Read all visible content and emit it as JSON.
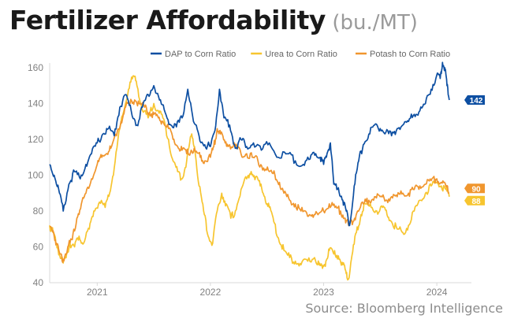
{
  "chart_data": {
    "type": "line",
    "title": "Fertilizer Affordability",
    "unit": "(bu./MT)",
    "source": "Source: Bloomberg Intelligence",
    "x_range": [
      2020.58,
      2024.25
    ],
    "ylim": [
      40,
      160
    ],
    "yticks": [
      40,
      60,
      80,
      100,
      120,
      140,
      160
    ],
    "xticks": [
      {
        "x": 2021.0,
        "label": "2021"
      },
      {
        "x": 2022.0,
        "label": "2022"
      },
      {
        "x": 2023.0,
        "label": "2023"
      },
      {
        "x": 2024.0,
        "label": "2024"
      }
    ],
    "legend_position": "top-right",
    "series": [
      {
        "name": "DAP to Corn Ratio",
        "color": "#0d4fa2",
        "end_label": "142",
        "points": [
          [
            2020.58,
            106
          ],
          [
            2020.62,
            100
          ],
          [
            2020.66,
            92
          ],
          [
            2020.7,
            80
          ],
          [
            2020.75,
            95
          ],
          [
            2020.8,
            102
          ],
          [
            2020.85,
            98
          ],
          [
            2020.9,
            106
          ],
          [
            2020.95,
            112
          ],
          [
            2021.0,
            118
          ],
          [
            2021.05,
            123
          ],
          [
            2021.1,
            126
          ],
          [
            2021.15,
            122
          ],
          [
            2021.2,
            138
          ],
          [
            2021.25,
            145
          ],
          [
            2021.3,
            136
          ],
          [
            2021.35,
            128
          ],
          [
            2021.4,
            138
          ],
          [
            2021.45,
            145
          ],
          [
            2021.5,
            150
          ],
          [
            2021.55,
            142
          ],
          [
            2021.6,
            135
          ],
          [
            2021.65,
            128
          ],
          [
            2021.7,
            127
          ],
          [
            2021.75,
            132
          ],
          [
            2021.8,
            148
          ],
          [
            2021.85,
            130
          ],
          [
            2021.9,
            122
          ],
          [
            2021.95,
            117
          ],
          [
            2022.0,
            116
          ],
          [
            2022.04,
            125
          ],
          [
            2022.08,
            148
          ],
          [
            2022.12,
            132
          ],
          [
            2022.17,
            128
          ],
          [
            2022.22,
            115
          ],
          [
            2022.27,
            120
          ],
          [
            2022.32,
            116
          ],
          [
            2022.38,
            118
          ],
          [
            2022.45,
            114
          ],
          [
            2022.52,
            118
          ],
          [
            2022.6,
            110
          ],
          [
            2022.68,
            112
          ],
          [
            2022.75,
            108
          ],
          [
            2022.82,
            106
          ],
          [
            2022.88,
            109
          ],
          [
            2022.93,
            112
          ],
          [
            2022.97,
            110
          ],
          [
            2023.0,
            106
          ],
          [
            2023.03,
            112
          ],
          [
            2023.06,
            118
          ],
          [
            2023.09,
            95
          ],
          [
            2023.13,
            93
          ],
          [
            2023.17,
            86
          ],
          [
            2023.2,
            80
          ],
          [
            2023.23,
            72
          ],
          [
            2023.27,
            94
          ],
          [
            2023.31,
            108
          ],
          [
            2023.35,
            117
          ],
          [
            2023.4,
            123
          ],
          [
            2023.45,
            128
          ],
          [
            2023.5,
            126
          ],
          [
            2023.55,
            124
          ],
          [
            2023.6,
            122
          ],
          [
            2023.65,
            126
          ],
          [
            2023.7,
            128
          ],
          [
            2023.75,
            130
          ],
          [
            2023.8,
            134
          ],
          [
            2023.85,
            136
          ],
          [
            2023.9,
            140
          ],
          [
            2023.95,
            148
          ],
          [
            2024.0,
            156
          ],
          [
            2024.03,
            154
          ],
          [
            2024.05,
            163
          ],
          [
            2024.07,
            160
          ],
          [
            2024.09,
            150
          ],
          [
            2024.11,
            142
          ]
        ]
      },
      {
        "name": "Urea to Corn Ratio",
        "color": "#f7c52f",
        "end_label": "88",
        "points": [
          [
            2020.58,
            72
          ],
          [
            2020.61,
            68
          ],
          [
            2020.64,
            62
          ],
          [
            2020.67,
            55
          ],
          [
            2020.7,
            51
          ],
          [
            2020.73,
            56
          ],
          [
            2020.76,
            62
          ],
          [
            2020.8,
            60
          ],
          [
            2020.84,
            66
          ],
          [
            2020.88,
            62
          ],
          [
            2020.93,
            70
          ],
          [
            2020.97,
            80
          ],
          [
            2021.02,
            85
          ],
          [
            2021.07,
            82
          ],
          [
            2021.11,
            90
          ],
          [
            2021.15,
            104
          ],
          [
            2021.2,
            126
          ],
          [
            2021.25,
            140
          ],
          [
            2021.29,
            152
          ],
          [
            2021.33,
            155
          ],
          [
            2021.36,
            148
          ],
          [
            2021.4,
            136
          ],
          [
            2021.45,
            132
          ],
          [
            2021.5,
            140
          ],
          [
            2021.54,
            136
          ],
          [
            2021.58,
            132
          ],
          [
            2021.63,
            120
          ],
          [
            2021.67,
            108
          ],
          [
            2021.71,
            102
          ],
          [
            2021.75,
            98
          ],
          [
            2021.79,
            108
          ],
          [
            2021.83,
            122
          ],
          [
            2021.86,
            116
          ],
          [
            2021.9,
            94
          ],
          [
            2021.94,
            80
          ],
          [
            2021.98,
            66
          ],
          [
            2022.02,
            62
          ],
          [
            2022.06,
            80
          ],
          [
            2022.1,
            90
          ],
          [
            2022.14,
            84
          ],
          [
            2022.18,
            76
          ],
          [
            2022.22,
            80
          ],
          [
            2022.27,
            92
          ],
          [
            2022.32,
            98
          ],
          [
            2022.36,
            102
          ],
          [
            2022.4,
            99
          ],
          [
            2022.44,
            94
          ],
          [
            2022.48,
            88
          ],
          [
            2022.52,
            82
          ],
          [
            2022.56,
            74
          ],
          [
            2022.6,
            65
          ],
          [
            2022.65,
            58
          ],
          [
            2022.7,
            54
          ],
          [
            2022.75,
            52
          ],
          [
            2022.8,
            50
          ],
          [
            2022.86,
            52
          ],
          [
            2022.92,
            54
          ],
          [
            2022.96,
            50
          ],
          [
            2022.99,
            48
          ],
          [
            2023.02,
            52
          ],
          [
            2023.05,
            58
          ],
          [
            2023.09,
            56
          ],
          [
            2023.13,
            55
          ],
          [
            2023.17,
            50
          ],
          [
            2023.2,
            45
          ],
          [
            2023.22,
            42
          ],
          [
            2023.25,
            55
          ],
          [
            2023.29,
            68
          ],
          [
            2023.33,
            78
          ],
          [
            2023.37,
            84
          ],
          [
            2023.42,
            82
          ],
          [
            2023.47,
            80
          ],
          [
            2023.52,
            82
          ],
          [
            2023.56,
            78
          ],
          [
            2023.6,
            74
          ],
          [
            2023.65,
            70
          ],
          [
            2023.7,
            68
          ],
          [
            2023.75,
            72
          ],
          [
            2023.8,
            80
          ],
          [
            2023.85,
            86
          ],
          [
            2023.9,
            90
          ],
          [
            2023.95,
            94
          ],
          [
            2024.0,
            96
          ],
          [
            2024.04,
            94
          ],
          [
            2024.08,
            92
          ],
          [
            2024.11,
            88
          ]
        ]
      },
      {
        "name": "Potash to Corn Ratio",
        "color": "#f0962e",
        "end_label": "90",
        "points": [
          [
            2020.58,
            71
          ],
          [
            2020.61,
            69
          ],
          [
            2020.64,
            62
          ],
          [
            2020.67,
            56
          ],
          [
            2020.7,
            53
          ],
          [
            2020.74,
            60
          ],
          [
            2020.78,
            64
          ],
          [
            2020.82,
            76
          ],
          [
            2020.86,
            84
          ],
          [
            2020.9,
            90
          ],
          [
            2020.95,
            98
          ],
          [
            2021.0,
            106
          ],
          [
            2021.04,
            110
          ],
          [
            2021.08,
            112
          ],
          [
            2021.12,
            115
          ],
          [
            2021.17,
            122
          ],
          [
            2021.21,
            130
          ],
          [
            2021.25,
            138
          ],
          [
            2021.29,
            140
          ],
          [
            2021.33,
            142
          ],
          [
            2021.37,
            140
          ],
          [
            2021.42,
            138
          ],
          [
            2021.46,
            135
          ],
          [
            2021.5,
            134
          ],
          [
            2021.54,
            132
          ],
          [
            2021.58,
            130
          ],
          [
            2021.63,
            126
          ],
          [
            2021.67,
            120
          ],
          [
            2021.71,
            116
          ],
          [
            2021.75,
            114
          ],
          [
            2021.79,
            112
          ],
          [
            2021.83,
            114
          ],
          [
            2021.87,
            113
          ],
          [
            2021.91,
            110
          ],
          [
            2021.95,
            108
          ],
          [
            2022.0,
            110
          ],
          [
            2022.03,
            116
          ],
          [
            2022.06,
            126
          ],
          [
            2022.09,
            123
          ],
          [
            2022.13,
            118
          ],
          [
            2022.17,
            117
          ],
          [
            2022.22,
            116
          ],
          [
            2022.27,
            112
          ],
          [
            2022.32,
            112
          ],
          [
            2022.37,
            110
          ],
          [
            2022.42,
            108
          ],
          [
            2022.47,
            104
          ],
          [
            2022.52,
            102
          ],
          [
            2022.57,
            100
          ],
          [
            2022.61,
            96
          ],
          [
            2022.65,
            90
          ],
          [
            2022.7,
            86
          ],
          [
            2022.75,
            84
          ],
          [
            2022.8,
            80
          ],
          [
            2022.85,
            79
          ],
          [
            2022.9,
            78
          ],
          [
            2022.95,
            78
          ],
          [
            2023.0,
            80
          ],
          [
            2023.05,
            84
          ],
          [
            2023.1,
            82
          ],
          [
            2023.15,
            80
          ],
          [
            2023.19,
            76
          ],
          [
            2023.22,
            72
          ],
          [
            2023.26,
            74
          ],
          [
            2023.3,
            80
          ],
          [
            2023.35,
            84
          ],
          [
            2023.4,
            86
          ],
          [
            2023.45,
            88
          ],
          [
            2023.5,
            88
          ],
          [
            2023.55,
            86
          ],
          [
            2023.6,
            88
          ],
          [
            2023.65,
            88
          ],
          [
            2023.7,
            90
          ],
          [
            2023.75,
            90
          ],
          [
            2023.8,
            92
          ],
          [
            2023.85,
            94
          ],
          [
            2023.9,
            95
          ],
          [
            2023.95,
            97
          ],
          [
            2024.0,
            98
          ],
          [
            2024.04,
            96
          ],
          [
            2024.08,
            94
          ],
          [
            2024.11,
            90
          ]
        ]
      }
    ]
  }
}
